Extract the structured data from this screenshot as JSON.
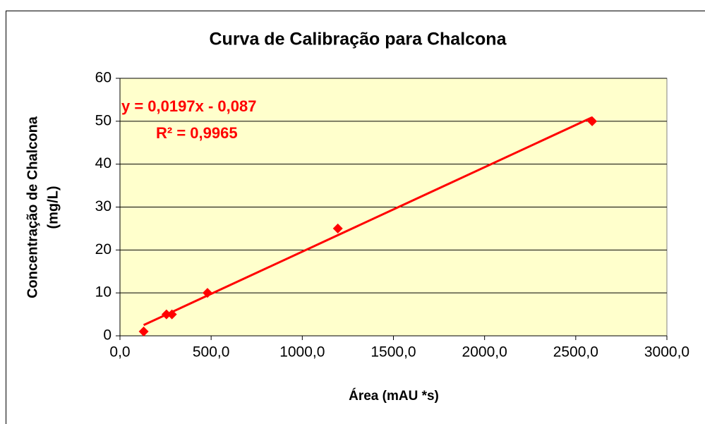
{
  "chart_data": {
    "type": "scatter",
    "title": "Curva de Calibração para Chalcona",
    "xlabel": "Área (mAU *s)",
    "ylabel": [
      "Concentração de Chalcona",
      "(mg/L)"
    ],
    "series": [
      {
        "name": "Chalcona",
        "color": "#ff0000",
        "x": [
          130,
          255,
          285,
          480,
          1195,
          2590
        ],
        "values": [
          1,
          5,
          5,
          10,
          25,
          50
        ]
      }
    ],
    "trendline": {
      "color": "#ff0000",
      "x": [
        130,
        2590
      ],
      "values": [
        2.5,
        50.9
      ]
    },
    "annotations": [
      "y = 0,0197x - 0,087",
      "R² = 0,9965"
    ],
    "annotation_color": "#ff0000",
    "xlim": [
      0,
      3000
    ],
    "xticks": [
      {
        "value": 0,
        "label": "0,0"
      },
      {
        "value": 500,
        "label": "500,0"
      },
      {
        "value": 1000,
        "label": "1000,0"
      },
      {
        "value": 1500,
        "label": "1500,0"
      },
      {
        "value": 2000,
        "label": "2000,0"
      },
      {
        "value": 2500,
        "label": "2500,0"
      },
      {
        "value": 3000,
        "label": "3000,0"
      }
    ],
    "ylim": [
      0,
      60
    ],
    "yticks": [
      0,
      10,
      20,
      30,
      40,
      50,
      60
    ],
    "grid": true,
    "plot_background": "#ffffcc"
  }
}
